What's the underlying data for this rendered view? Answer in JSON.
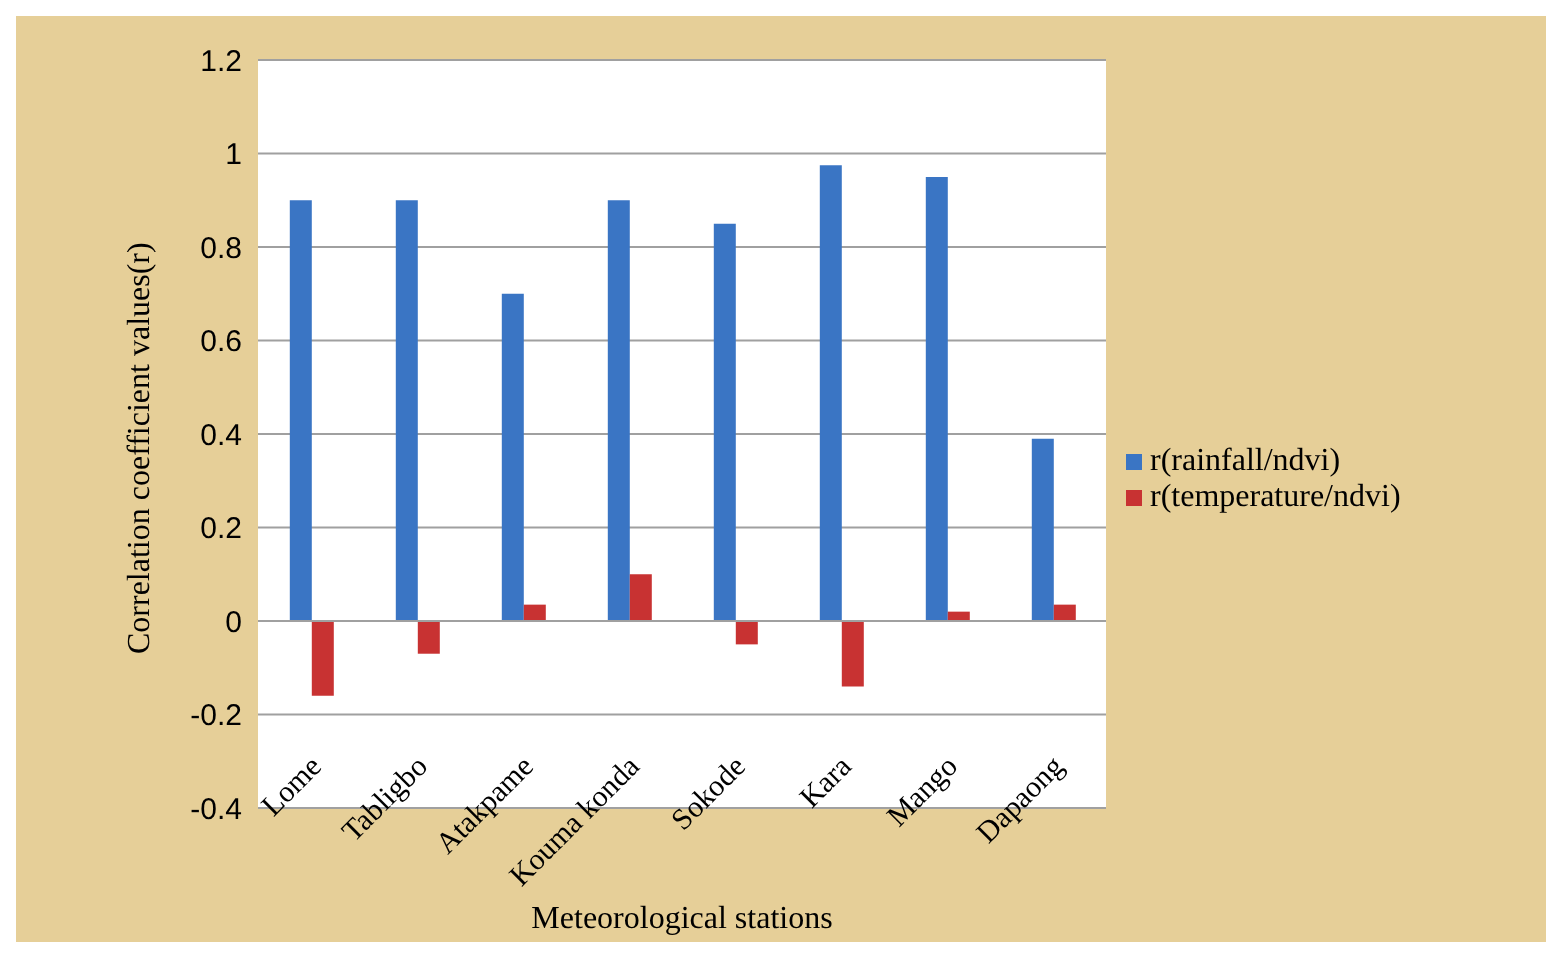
{
  "chart_data": {
    "type": "bar",
    "xlabel": "Meteorological stations",
    "ylabel": "Correlation coefficient values(r)",
    "categories": [
      "Lome",
      "Tabligbo",
      "Atakpame",
      "Kouma konda",
      "Sokode",
      "Kara",
      "Mango",
      "Dapaong"
    ],
    "series": [
      {
        "name": "r(rainfall/ndvi)",
        "color": "#3a75c4",
        "values": [
          0.9,
          0.9,
          0.7,
          0.9,
          0.85,
          0.975,
          0.95,
          0.39
        ]
      },
      {
        "name": "r(temperature/ndvi)",
        "color": "#c83232",
        "values": [
          -0.16,
          -0.07,
          0.035,
          0.1,
          -0.05,
          -0.14,
          0.02,
          0.035
        ]
      }
    ],
    "ylim": [
      -0.4,
      1.2
    ],
    "yticks": [
      -0.4,
      -0.2,
      0,
      0.2,
      0.4,
      0.6,
      0.8,
      1,
      1.2
    ],
    "grid": "y",
    "legend": "right"
  }
}
